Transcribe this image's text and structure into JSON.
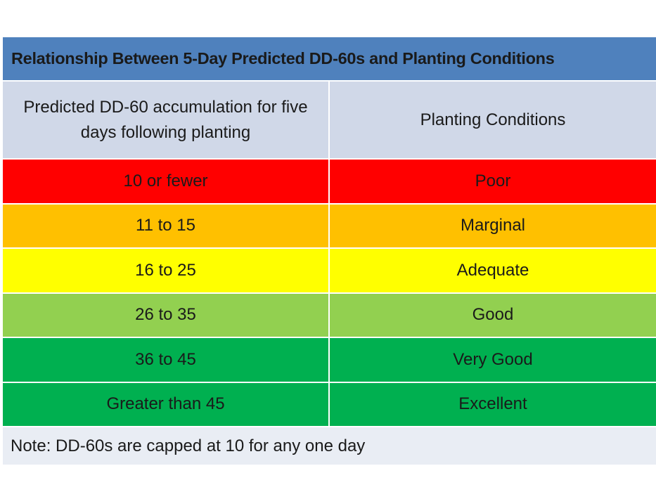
{
  "table": {
    "title": "Relationship Between 5-Day Predicted DD-60s and Planting Conditions",
    "header": {
      "col1": "Predicted DD-60 accumulation for five days following planting",
      "col2": "Planting Conditions"
    },
    "rows": [
      {
        "range": "10 or fewer",
        "condition": "Poor",
        "color": "#ff0000"
      },
      {
        "range": "11 to 15",
        "condition": "Marginal",
        "color": "#ffc000"
      },
      {
        "range": "16 to 25",
        "condition": "Adequate",
        "color": "#ffff00"
      },
      {
        "range": "26 to 35",
        "condition": "Good",
        "color": "#92d050"
      },
      {
        "range": "36 to 45",
        "condition": "Very Good",
        "color": "#00b050"
      },
      {
        "range": "Greater than 45",
        "condition": "Excellent",
        "color": "#00b050"
      }
    ],
    "note": "Note: DD-60s are capped at 10 for any one day"
  }
}
